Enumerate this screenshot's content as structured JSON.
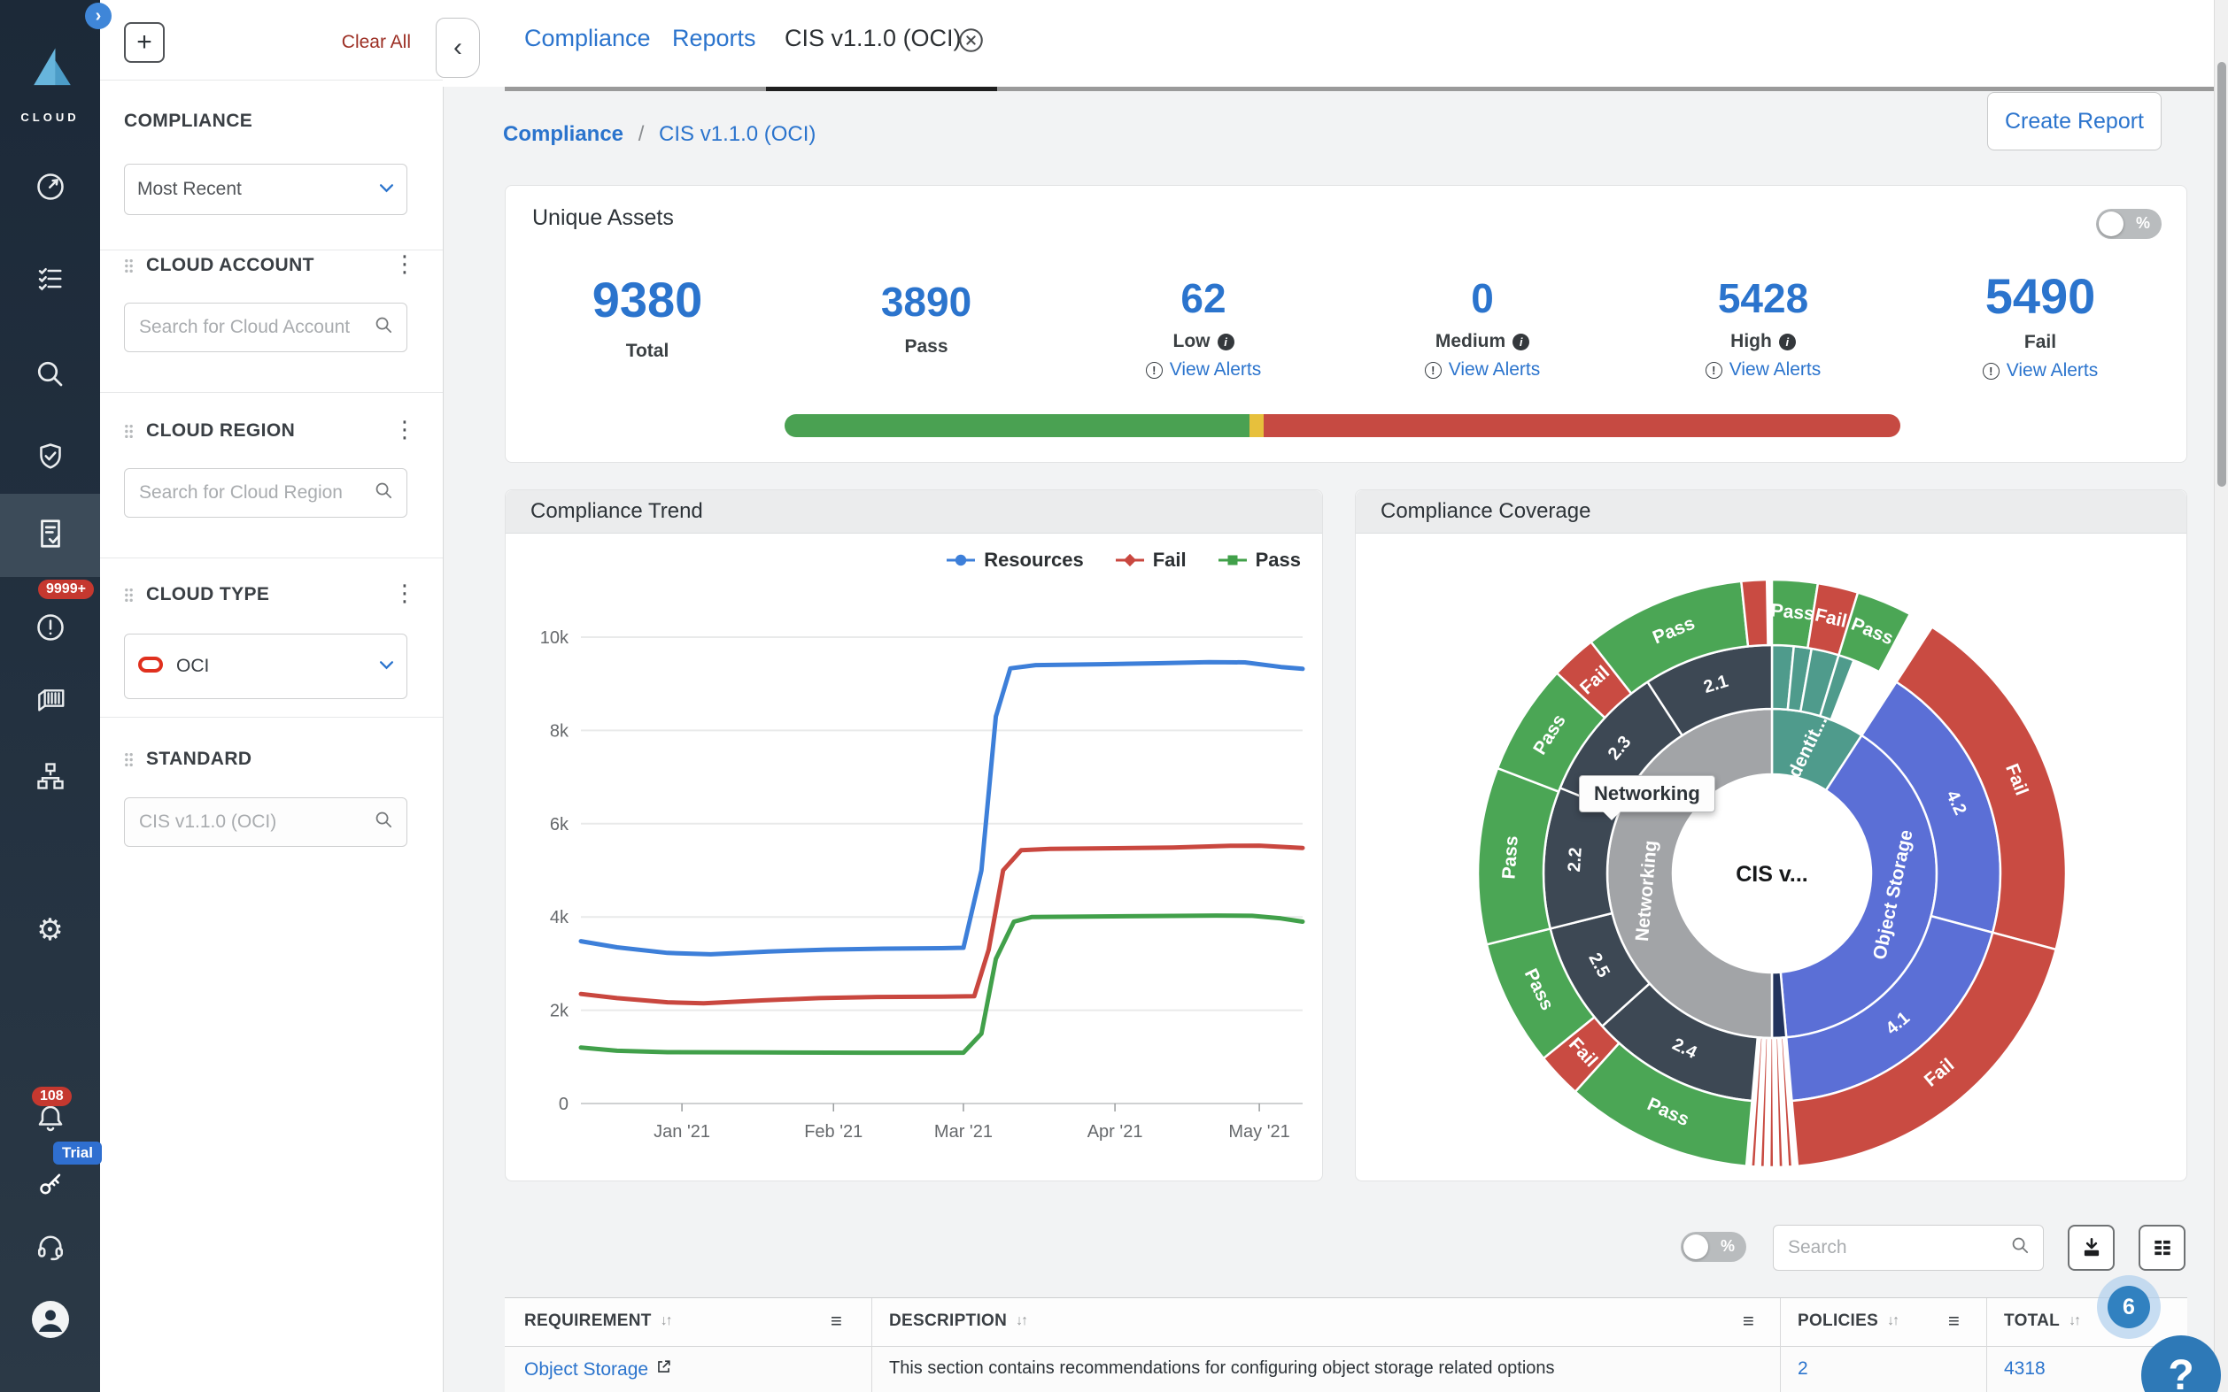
{
  "app": {
    "logo_text": "CLOUD"
  },
  "sidebar": {
    "alerts_badge": "9999+",
    "notif_badge": "108",
    "trial_badge": "Trial"
  },
  "filters": {
    "add_label": "+",
    "clear_all": "Clear All",
    "collapse_icon": "‹",
    "compliance": {
      "title": "COMPLIANCE",
      "select_value": "Most Recent"
    },
    "cloud_account": {
      "title": "CLOUD ACCOUNT",
      "placeholder": "Search for Cloud Account"
    },
    "cloud_region": {
      "title": "CLOUD REGION",
      "placeholder": "Search for Cloud Region"
    },
    "cloud_type": {
      "title": "CLOUD TYPE",
      "select_value": "OCI"
    },
    "standard": {
      "title": "STANDARD",
      "placeholder": "CIS v1.1.0 (OCI)"
    }
  },
  "tabs": {
    "tab1": "Compliance",
    "tab2": "Reports",
    "tab3": "CIS v1.1.0 (OCI)"
  },
  "breadcrumb": {
    "root": "Compliance",
    "separator": "/",
    "current": "CIS v1.1.0 (OCI)"
  },
  "actions": {
    "create_report": "Create Report"
  },
  "unique_assets": {
    "title": "Unique Assets",
    "percent_label": "%",
    "stats": [
      {
        "value": "9380",
        "label": "Total"
      },
      {
        "value": "3890",
        "label": "Pass"
      },
      {
        "value": "62",
        "label": "Low",
        "view_alerts": "View Alerts"
      },
      {
        "value": "0",
        "label": "Medium",
        "view_alerts": "View Alerts"
      },
      {
        "value": "5428",
        "label": "High",
        "view_alerts": "View Alerts"
      },
      {
        "value": "5490",
        "label": "Fail",
        "view_alerts": "View Alerts"
      }
    ],
    "bar": {
      "green_pct": 41.7,
      "yellow_pct": 1.2,
      "red_pct": 57.1,
      "colors": {
        "green": "#4aa152",
        "yellow": "#e7c03c",
        "red": "#c64a42"
      }
    }
  },
  "chart_data": [
    {
      "type": "line",
      "title": "Compliance Trend",
      "xlabel": "",
      "ylabel": "",
      "ylim": [
        0,
        10000
      ],
      "grid": true,
      "legend_position": "top-right",
      "y_ticks": [
        {
          "v": 0,
          "label": "0"
        },
        {
          "v": 2000,
          "label": "2k"
        },
        {
          "v": 4000,
          "label": "4k"
        },
        {
          "v": 6000,
          "label": "6k"
        },
        {
          "v": 8000,
          "label": "8k"
        },
        {
          "v": 10000,
          "label": "10k"
        }
      ],
      "x_ticks": [
        {
          "f": 0.14,
          "label": "Jan '21"
        },
        {
          "f": 0.35,
          "label": "Feb '21"
        },
        {
          "f": 0.53,
          "label": "Mar '21"
        },
        {
          "f": 0.74,
          "label": "Apr '21"
        },
        {
          "f": 0.94,
          "label": "May '21"
        }
      ],
      "legend": [
        {
          "name": "Resources",
          "color": "#3d7fd9",
          "marker": "circle"
        },
        {
          "name": "Fail",
          "color": "#c9473f",
          "marker": "diamond"
        },
        {
          "name": "Pass",
          "color": "#41a04a",
          "marker": "square"
        }
      ],
      "series": [
        {
          "name": "Resources",
          "color": "#3d7fd9",
          "points": [
            [
              0,
              3480
            ],
            [
              0.05,
              3350
            ],
            [
              0.12,
              3230
            ],
            [
              0.18,
              3200
            ],
            [
              0.26,
              3260
            ],
            [
              0.34,
              3300
            ],
            [
              0.42,
              3320
            ],
            [
              0.5,
              3330
            ],
            [
              0.53,
              3340
            ],
            [
              0.555,
              5000
            ],
            [
              0.575,
              8300
            ],
            [
              0.595,
              9330
            ],
            [
              0.63,
              9400
            ],
            [
              0.72,
              9420
            ],
            [
              0.8,
              9440
            ],
            [
              0.87,
              9465
            ],
            [
              0.92,
              9460
            ],
            [
              0.97,
              9360
            ],
            [
              1,
              9320
            ]
          ]
        },
        {
          "name": "Fail",
          "color": "#c9473f",
          "points": [
            [
              0,
              2350
            ],
            [
              0.05,
              2260
            ],
            [
              0.12,
              2170
            ],
            [
              0.17,
              2150
            ],
            [
              0.25,
              2210
            ],
            [
              0.33,
              2260
            ],
            [
              0.41,
              2285
            ],
            [
              0.5,
              2290
            ],
            [
              0.545,
              2300
            ],
            [
              0.565,
              3300
            ],
            [
              0.585,
              5000
            ],
            [
              0.61,
              5430
            ],
            [
              0.65,
              5460
            ],
            [
              0.74,
              5475
            ],
            [
              0.82,
              5490
            ],
            [
              0.9,
              5525
            ],
            [
              0.94,
              5530
            ],
            [
              1,
              5480
            ]
          ]
        },
        {
          "name": "Pass",
          "color": "#41a04a",
          "points": [
            [
              0,
              1200
            ],
            [
              0.05,
              1130
            ],
            [
              0.12,
              1100
            ],
            [
              0.25,
              1095
            ],
            [
              0.4,
              1090
            ],
            [
              0.53,
              1090
            ],
            [
              0.555,
              1500
            ],
            [
              0.575,
              3100
            ],
            [
              0.6,
              3900
            ],
            [
              0.625,
              4000
            ],
            [
              0.7,
              4010
            ],
            [
              0.8,
              4020
            ],
            [
              0.88,
              4030
            ],
            [
              0.93,
              4025
            ],
            [
              0.97,
              3970
            ],
            [
              1,
              3900
            ]
          ]
        }
      ]
    },
    {
      "type": "sunburst",
      "title": "Compliance Coverage",
      "center_label": "CIS v...",
      "tooltip": "Networking",
      "radii": {
        "inner": [
          112,
          186
        ],
        "middle": [
          186,
          258
        ],
        "outer": [
          258,
          332
        ]
      },
      "rings": {
        "inner": [
          {
            "label": "Identit...",
            "a0": 0,
            "a1": 33,
            "color": "#4f9b8c",
            "label_angle": 16,
            "label_r": 146,
            "label_rot": -64
          },
          {
            "label": "Object Storage",
            "a0": 33,
            "a1": 175,
            "color": "#5b6fd6",
            "label_angle": 100,
            "label_r": 140,
            "label_rot": -78
          },
          {
            "label": "",
            "a0": 175,
            "a1": 180,
            "color": "#22335c"
          },
          {
            "label": "Networking",
            "a0": 180,
            "a1": 360,
            "color": "#a2a4a7",
            "label_angle": 262,
            "label_r": 142,
            "label_rot": -85
          }
        ],
        "middle": [
          {
            "label": "",
            "a0": 0,
            "a1": 5.5,
            "color": "#4f9b8c"
          },
          {
            "label": "",
            "a0": 5.5,
            "a1": 10,
            "color": "#4f9b8c"
          },
          {
            "label": "",
            "a0": 10,
            "a1": 17,
            "color": "#4f9b8c"
          },
          {
            "label": "",
            "a0": 17,
            "a1": 21,
            "color": "#4f9b8c"
          },
          {
            "label": "4.2",
            "a0": 33,
            "a1": 105,
            "color": "#5b6fd6",
            "label_rot": 65
          },
          {
            "label": "4.1",
            "a0": 105,
            "a1": 175,
            "color": "#5b6fd6",
            "label_rot": -40
          },
          {
            "label": "2.4",
            "a0": 185,
            "a1": 228,
            "color": "#3d4854",
            "label_rot": 26
          },
          {
            "label": "2.5",
            "a0": 228,
            "a1": 256,
            "color": "#3d4854",
            "label_rot": 62
          },
          {
            "label": "2.2",
            "a0": 256,
            "a1": 292,
            "color": "#3d4854",
            "label_rot": -86
          },
          {
            "label": "2.3",
            "a0": 292,
            "a1": 327,
            "color": "#3d4854",
            "label_rot": -50
          },
          {
            "label": "2.1",
            "a0": 327,
            "a1": 360,
            "color": "#3d4854",
            "label_rot": -17
          }
        ],
        "outer": [
          {
            "label": "Pass",
            "a0": 0,
            "a1": 9,
            "color": "#4ba655",
            "label_rot": 5
          },
          {
            "label": "Fail",
            "a0": 9,
            "a1": 17,
            "color": "#c94b42",
            "label_rot": 13
          },
          {
            "label": "Pass",
            "a0": 17,
            "a1": 28,
            "color": "#4ba655",
            "label_rot": 22
          },
          {
            "label": "Fail",
            "a0": 33,
            "a1": 105,
            "color": "#c94b42",
            "label_rot": 69
          },
          {
            "label": "Fail",
            "a0": 105,
            "a1": 175,
            "color": "#c94b42",
            "label_rot": -40
          },
          {
            "label": "Pass",
            "a0": 185,
            "a1": 222,
            "color": "#4ba655",
            "label_rot": 24
          },
          {
            "label": "Fail",
            "a0": 222,
            "a1": 231,
            "color": "#c94b42",
            "label_rot": 47
          },
          {
            "label": "Pass",
            "a0": 231,
            "a1": 256,
            "color": "#4ba655",
            "label_rot": 64
          },
          {
            "label": "Pass",
            "a0": 256,
            "a1": 291,
            "color": "#4ba655",
            "label_rot": -86
          },
          {
            "label": "Pass",
            "a0": 291,
            "a1": 313,
            "color": "#4ba655",
            "label_rot": -58
          },
          {
            "label": "Fail",
            "a0": 313,
            "a1": 322,
            "color": "#c94b42",
            "label_rot": -42
          },
          {
            "label": "Pass",
            "a0": 322,
            "a1": 354,
            "color": "#4ba655",
            "label_rot": -22
          },
          {
            "label": "",
            "a0": 354,
            "a1": 359,
            "color": "#c94b42"
          }
        ]
      },
      "stripes": {
        "start": 176,
        "count": 5,
        "step": 1.8,
        "width": 0.9,
        "color": "#c94b42",
        "r0": 186,
        "r1": 332
      }
    }
  ],
  "toolbar": {
    "search_placeholder": "Search",
    "percent_label": "%"
  },
  "table": {
    "columns": [
      "REQUIREMENT",
      "DESCRIPTION",
      "POLICIES",
      "TOTAL"
    ],
    "rows": [
      {
        "requirement": "Object Storage",
        "description": "This section contains recommendations for configuring object storage related options",
        "policies": "2",
        "total": "4318"
      }
    ]
  },
  "help": {
    "badge": "6",
    "icon": "?"
  }
}
